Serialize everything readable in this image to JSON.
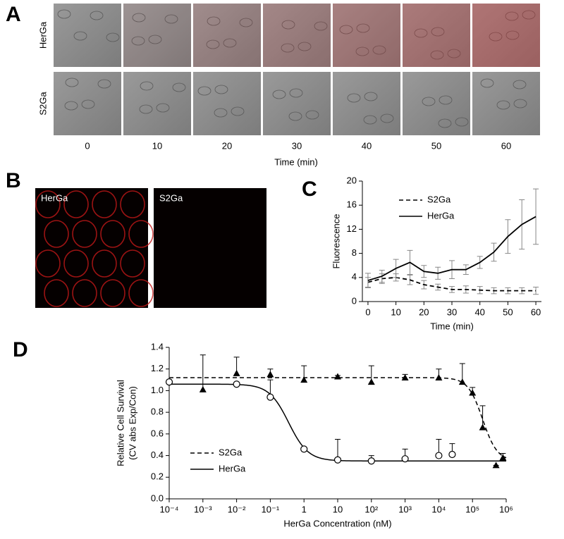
{
  "panel_labels": [
    "A",
    "B",
    "C",
    "D"
  ],
  "panel_a": {
    "rows": [
      "HerGa",
      "S2Ga"
    ],
    "timepoints": [
      "0",
      "10",
      "20",
      "30",
      "40",
      "50",
      "60"
    ],
    "xlabel": "Time (min)"
  },
  "panel_b": {
    "images": [
      "HerGa",
      "S2Ga"
    ]
  },
  "chart_data": [
    {
      "type": "line",
      "xlabel": "Time (min)",
      "ylabel": "Fluorescence",
      "x": [
        0,
        5,
        10,
        15,
        20,
        25,
        30,
        35,
        40,
        45,
        50,
        55,
        60
      ],
      "xlim": [
        -2,
        62
      ],
      "xticks": [
        0,
        10,
        20,
        30,
        40,
        50,
        60
      ],
      "ylim": [
        0,
        20
      ],
      "yticks": [
        0,
        4,
        8,
        12,
        16,
        20
      ],
      "legend": "upper left",
      "error_bars": "both",
      "series": [
        {
          "name": "S2Ga",
          "color": "#000000",
          "line_style": "dashed",
          "values": [
            3.2,
            3.8,
            4.0,
            3.6,
            2.8,
            2.4,
            2.0,
            2.0,
            1.9,
            1.8,
            1.8,
            1.8,
            1.8
          ],
          "errors": [
            0.8,
            0.8,
            0.6,
            0.8,
            0.7,
            0.5,
            0.5,
            0.6,
            0.6,
            0.5,
            0.5,
            0.5,
            0.6
          ]
        },
        {
          "name": "HerGa",
          "color": "#000000",
          "line_style": "solid",
          "values": [
            3.5,
            4.2,
            5.5,
            6.5,
            5.0,
            4.7,
            5.3,
            5.3,
            6.5,
            8.2,
            10.8,
            12.8,
            14.1
          ],
          "errors": [
            1.2,
            1.0,
            1.5,
            2.0,
            1.0,
            1.0,
            1.5,
            0.8,
            1.0,
            1.5,
            2.8,
            4.1,
            4.6
          ]
        }
      ]
    },
    {
      "type": "scatter",
      "xlabel": "HerGa Concentration (nM)",
      "ylabel": [
        "Relative Cell Survival",
        "(CV abs Exp/Con)"
      ],
      "log_x": true,
      "xlim": [
        0.0001,
        1000000
      ],
      "xticks": [
        {
          "value": 0.0001,
          "label": "10⁻⁴"
        },
        {
          "value": 0.001,
          "label": "10⁻³"
        },
        {
          "value": 0.01,
          "label": "10⁻²"
        },
        {
          "value": 0.1,
          "label": "10⁻¹"
        },
        1,
        10,
        {
          "value": 100,
          "label": "10²"
        },
        {
          "value": 1000,
          "label": "10³"
        },
        {
          "value": 10000,
          "label": "10⁴"
        },
        {
          "value": 100000,
          "label": "10⁵"
        },
        {
          "value": 1000000,
          "label": "10⁶"
        }
      ],
      "ylim": [
        0,
        1.4
      ],
      "yticks": [
        {
          "value": 0,
          "label": "0.0"
        },
        0.2,
        0.4,
        0.6,
        0.8,
        {
          "value": 1,
          "label": "1.0"
        },
        1.2,
        1.4
      ],
      "legend": "lower left",
      "error_bars": "upper",
      "series": [
        {
          "name": "S2Ga",
          "color": "#000000",
          "line_style": "dashed",
          "marker": "triangle",
          "x": [
            0.001,
            0.01,
            0.1,
            1,
            10,
            100,
            1000,
            10000,
            50000,
            100000,
            200000,
            500000,
            800000
          ],
          "values": [
            1.01,
            1.16,
            1.15,
            1.1,
            1.13,
            1.08,
            1.12,
            1.12,
            1.08,
            0.98,
            0.66,
            0.31,
            0.38
          ],
          "errors": [
            0.32,
            0.15,
            0.05,
            0.13,
            0.01,
            0.15,
            0.03,
            0.08,
            0.17,
            0.05,
            0.2,
            0,
            0.04
          ],
          "fit": {
            "top": 1.12,
            "bottom": 0.35,
            "ec50": 200000,
            "hill": 2
          }
        },
        {
          "name": "HerGa",
          "color": "#000000",
          "line_style": "solid",
          "marker": "circle",
          "x": [
            0.0001,
            0.01,
            0.1,
            1,
            10,
            100,
            1000,
            10000,
            25000
          ],
          "values": [
            1.08,
            1.06,
            0.94,
            0.46,
            0.36,
            0.35,
            0.37,
            0.4,
            0.41
          ],
          "errors": [
            0,
            0,
            0.16,
            0,
            0.19,
            0.05,
            0.09,
            0.15,
            0.1
          ],
          "fit": {
            "top": 1.06,
            "bottom": 0.35,
            "ec50": 0.35,
            "hill": 1.5
          }
        }
      ]
    }
  ]
}
